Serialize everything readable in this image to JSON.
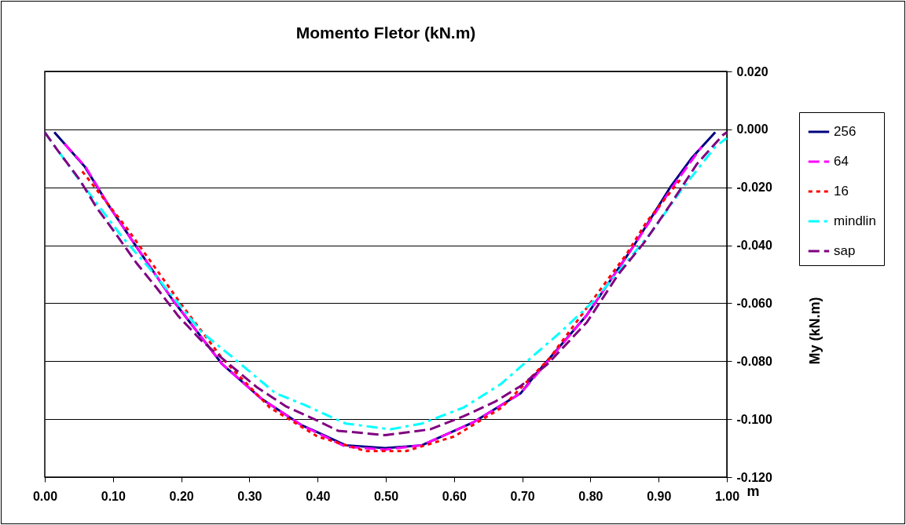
{
  "chart_data": {
    "type": "line",
    "title": "Momento Fletor (kN.m)",
    "xlabel": "m",
    "ylabel": "My  (kN.m)",
    "xlim": [
      0,
      1
    ],
    "xticks": [
      {
        "value": 0,
        "label": "0.00"
      },
      {
        "value": 0.1,
        "label": "0.10"
      },
      {
        "value": 0.2,
        "label": "0.20"
      },
      {
        "value": 0.3,
        "label": "0.30"
      },
      {
        "value": 0.4,
        "label": "0.40"
      },
      {
        "value": 0.5,
        "label": "0.50"
      },
      {
        "value": 0.6,
        "label": "0.60"
      },
      {
        "value": 0.7,
        "label": "0.70"
      },
      {
        "value": 0.8,
        "label": "0.80"
      },
      {
        "value": 0.9,
        "label": "0.90"
      },
      {
        "value": 1,
        "label": "1.00"
      }
    ],
    "ylim": [
      -0.12,
      0.02
    ],
    "yticks": [
      {
        "value": -0.12,
        "label": "-0.120"
      },
      {
        "value": -0.1,
        "label": "-0.100"
      },
      {
        "value": -0.08,
        "label": "-0.080"
      },
      {
        "value": -0.06,
        "label": "-0.060"
      },
      {
        "value": -0.04,
        "label": "-0.040"
      },
      {
        "value": -0.02,
        "label": "-0.020"
      },
      {
        "value": 0,
        "label": "0.000"
      },
      {
        "value": 0.02,
        "label": "0.020"
      }
    ],
    "grid": "y",
    "legend": "top right",
    "series": [
      {
        "name": "256",
        "color": "#000080",
        "line_style": "solid",
        "x": [
          0.014,
          0.059,
          0.093,
          0.13,
          0.188,
          0.26,
          0.318,
          0.376,
          0.395,
          0.441,
          0.499,
          0.553,
          0.629,
          0.698,
          0.718,
          0.795,
          0.864,
          0.917,
          0.948,
          0.983
        ],
        "values": [
          -0.001,
          -0.013,
          -0.026,
          -0.039,
          -0.059,
          -0.081,
          -0.093,
          -0.102,
          -0.104,
          -0.109,
          -0.11,
          -0.109,
          -0.101,
          -0.091,
          -0.085,
          -0.064,
          -0.04,
          -0.02,
          -0.01,
          -0.001
        ]
      },
      {
        "name": "64",
        "color": "#ff00ff",
        "line_style": "dashed",
        "x": [
          0.029,
          0.06,
          0.093,
          0.13,
          0.188,
          0.26,
          0.318,
          0.376,
          0.441,
          0.499,
          0.553,
          0.629,
          0.698,
          0.795,
          0.864,
          0.917,
          0.963
        ],
        "values": [
          -0.005,
          -0.013,
          -0.026,
          -0.039,
          -0.059,
          -0.081,
          -0.093,
          -0.102,
          -0.1095,
          -0.1105,
          -0.109,
          -0.101,
          -0.091,
          -0.064,
          -0.04,
          -0.021,
          -0.006
        ]
      },
      {
        "name": "16",
        "color": "#ff0000",
        "line_style": "dotted",
        "x": [
          0.055,
          0.12,
          0.199,
          0.26,
          0.33,
          0.4,
          0.47,
          0.53,
          0.6,
          0.67,
          0.74,
          0.806,
          0.853,
          0.882,
          0.933
        ],
        "values": [
          -0.0145,
          -0.034,
          -0.06,
          -0.079,
          -0.096,
          -0.106,
          -0.111,
          -0.111,
          -0.106,
          -0.096,
          -0.079,
          -0.058,
          -0.043,
          -0.032,
          -0.017
        ]
      },
      {
        "name": "mindlin",
        "color": "#00ffff",
        "line_style": "dashdot",
        "x": [
          0,
          0.052,
          0.081,
          0.113,
          0.161,
          0.23,
          0.272,
          0.338,
          0.38,
          0.441,
          0.507,
          0.553,
          0.614,
          0.668,
          0.756,
          0.806,
          0.891,
          0.933,
          0.983,
          1
        ],
        "values": [
          -0.001,
          -0.018,
          -0.027,
          -0.037,
          -0.05,
          -0.07,
          -0.078,
          -0.091,
          -0.095,
          -0.1015,
          -0.1035,
          -0.1015,
          -0.096,
          -0.088,
          -0.07,
          -0.059,
          -0.035,
          -0.021,
          -0.006,
          -0.003
        ]
      },
      {
        "name": "sap",
        "color": "#800080",
        "line_style": "dashed",
        "x": [
          0,
          0.018,
          0.05,
          0.076,
          0.104,
          0.134,
          0.165,
          0.196,
          0.23,
          0.26,
          0.311,
          0.353,
          0.395,
          0.43,
          0.499,
          0.565,
          0.614,
          0.66,
          0.698,
          0.737,
          0.795,
          0.841,
          0.879,
          0.917,
          0.956,
          0.994,
          1
        ],
        "values": [
          -0.001,
          -0.007,
          -0.017,
          -0.027,
          -0.036,
          -0.046,
          -0.055,
          -0.0645,
          -0.073,
          -0.079,
          -0.089,
          -0.0955,
          -0.1,
          -0.104,
          -0.1055,
          -0.1035,
          -0.099,
          -0.094,
          -0.0885,
          -0.081,
          -0.0665,
          -0.05,
          -0.039,
          -0.026,
          -0.012,
          -0.002,
          -0.001
        ]
      }
    ]
  }
}
